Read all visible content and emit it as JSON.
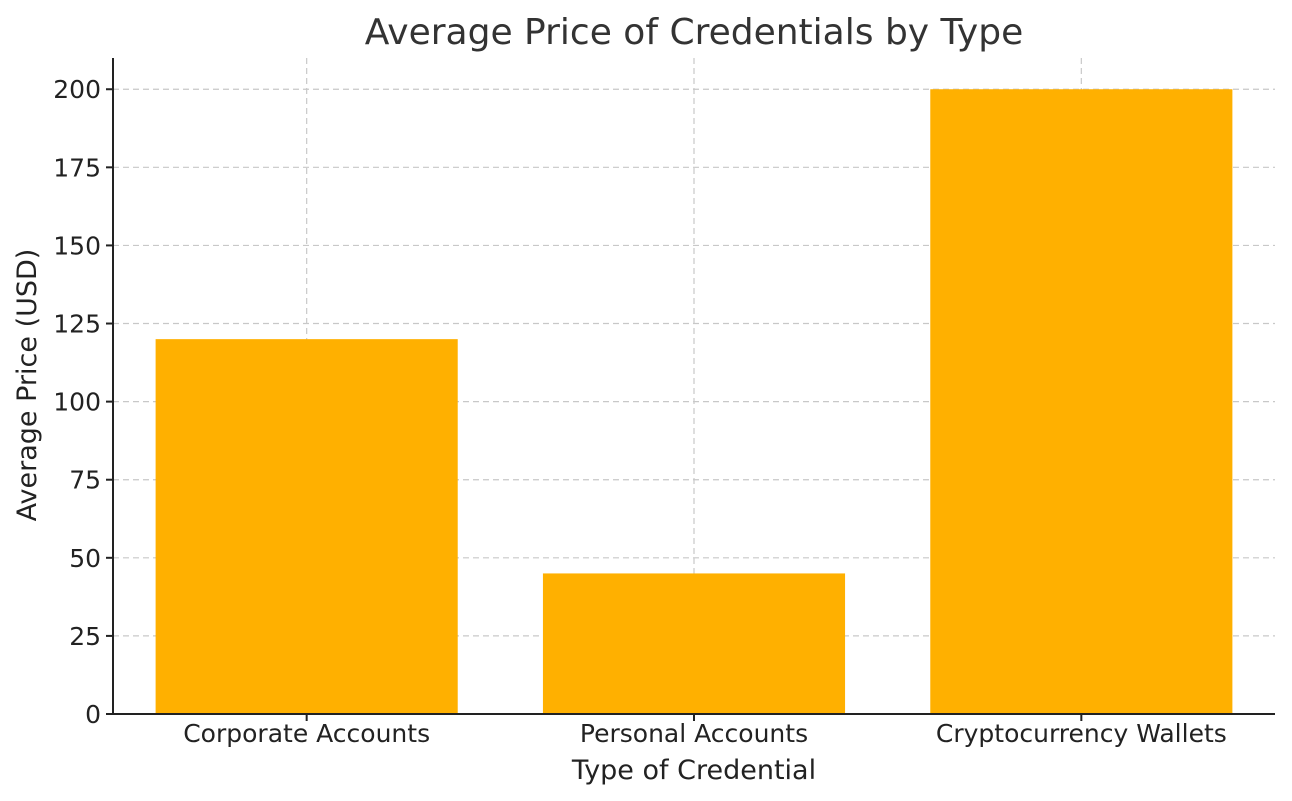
{
  "chart_data": {
    "type": "bar",
    "title": "Average Price of Credentials by Type",
    "xlabel": "Type of Credential",
    "ylabel": "Average Price (USD)",
    "categories": [
      "Corporate Accounts",
      "Personal Accounts",
      "Cryptocurrency Wallets"
    ],
    "values": [
      120,
      45,
      200
    ],
    "ylim": [
      0,
      210
    ],
    "yticks": [
      0,
      25,
      50,
      75,
      100,
      125,
      150,
      175,
      200
    ],
    "grid": true,
    "bar_color": "#FFB000"
  }
}
